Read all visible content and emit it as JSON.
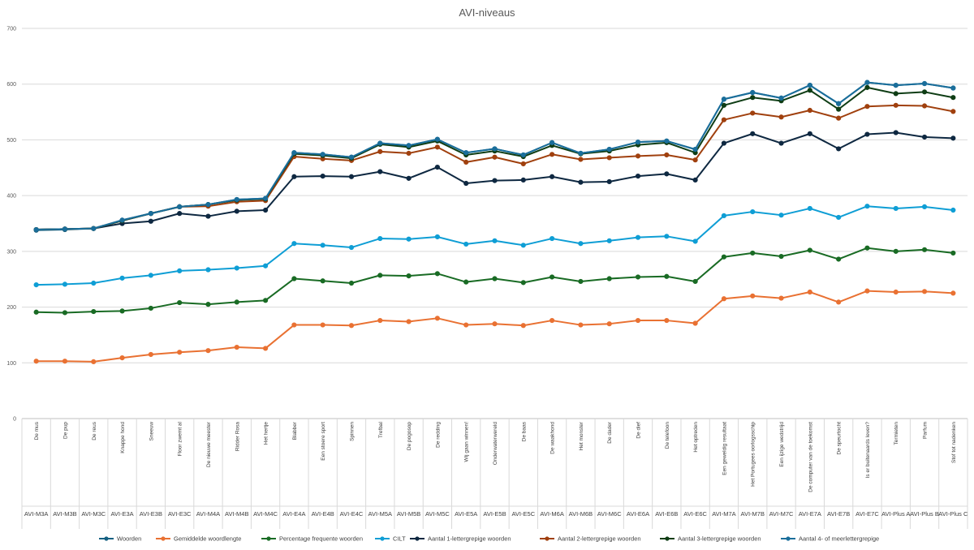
{
  "chart_data": {
    "type": "line",
    "title": "AVI-niveaus",
    "ylim": [
      0,
      700
    ],
    "yticks": [
      0,
      100,
      200,
      300,
      400,
      500,
      600,
      700
    ],
    "grid": "horizontal",
    "legend": "bottom",
    "categories": [
      {
        "name": "De mus",
        "group": "AVI-M3A"
      },
      {
        "name": "De pup",
        "group": "AVI-M3B"
      },
      {
        "name": "De reus",
        "group": "AVI-M3C"
      },
      {
        "name": "Knappe hond",
        "group": "AVI-E3A"
      },
      {
        "name": "Sneeuw",
        "group": "AVI-E3B"
      },
      {
        "name": "Floor zwemt al",
        "group": "AVI-E3C"
      },
      {
        "name": "De nieuwe meester",
        "group": "AVI-M4A"
      },
      {
        "name": "Ridder Rosa",
        "group": "AVI-M4B"
      },
      {
        "name": "Het hertje",
        "group": "AVI-M4C"
      },
      {
        "name": "Blabber",
        "group": "AVI-E4A"
      },
      {
        "name": "Een stoere sport",
        "group": "AVI-E4B"
      },
      {
        "name": "Spinnen",
        "group": "AVI-E4C"
      },
      {
        "name": "Trefbal",
        "group": "AVI-M5A"
      },
      {
        "name": "De pogosop",
        "group": "AVI-M5B"
      },
      {
        "name": "De redding",
        "group": "AVI-M5C"
      },
      {
        "name": "Wij gaan winnen!",
        "group": "AVI-E5A"
      },
      {
        "name": "Onderwaterwereld",
        "group": "AVI-E5B"
      },
      {
        "name": "De baas",
        "group": "AVI-E5C"
      },
      {
        "name": "De waakhond",
        "group": "AVI-M6A"
      },
      {
        "name": "Het monster",
        "group": "AVI-M6B"
      },
      {
        "name": "De dader",
        "group": "AVI-M6C"
      },
      {
        "name": "De dief",
        "group": "AVI-E6A"
      },
      {
        "name": "De telefoon",
        "group": "AVI-E6B"
      },
      {
        "name": "Het optreden",
        "group": "AVI-E6C"
      },
      {
        "name": "Een geweldig resultaat",
        "group": "AVI-M7A"
      },
      {
        "name": "Het Portugees oorlogsschip",
        "group": "AVI-M7B"
      },
      {
        "name": "Een ijzige wedstrijd",
        "group": "AVI-M7C"
      },
      {
        "name": "De computer van de toekomst",
        "group": "AVI-E7A"
      },
      {
        "name": "De speurtocht",
        "group": "AVI-E7B"
      },
      {
        "name": "Is er buitenaards leven?",
        "group": "AVI-E7C"
      },
      {
        "name": "Termieten",
        "group": "AVI-Plus A"
      },
      {
        "name": "Parfum",
        "group": "AVI-Plus B"
      },
      {
        "name": "Stof tot nadenken",
        "group": "AVI-Plus C"
      }
    ],
    "series": [
      {
        "name": "Woorden",
        "color": "#156082",
        "values": [
          338,
          339,
          341,
          356,
          368,
          380,
          384,
          393,
          395,
          477,
          474,
          469,
          494,
          490,
          501,
          477,
          484,
          473,
          495,
          476,
          483,
          496,
          498,
          483,
          573,
          585,
          575,
          598,
          565,
          603,
          598,
          601,
          593
        ]
      },
      {
        "name": "Gemiddelde woordlengte",
        "color": "#e97132",
        "values": [
          103,
          103,
          102,
          109,
          115,
          119,
          122,
          128,
          126,
          168,
          168,
          167,
          176,
          174,
          180,
          168,
          170,
          167,
          176,
          168,
          170,
          176,
          176,
          171,
          215,
          220,
          216,
          227,
          209,
          229,
          227,
          228,
          225
        ]
      },
      {
        "name": "Percentage frequente woorden",
        "color": "#196b24",
        "values": [
          191,
          190,
          192,
          193,
          198,
          208,
          205,
          209,
          212,
          251,
          247,
          243,
          257,
          256,
          260,
          245,
          251,
          244,
          254,
          246,
          251,
          254,
          255,
          246,
          290,
          297,
          291,
          302,
          286,
          306,
          300,
          303,
          297
        ]
      },
      {
        "name": "CILT",
        "color": "#0f9ed5",
        "values": [
          240,
          241,
          243,
          252,
          257,
          265,
          267,
          270,
          274,
          314,
          311,
          307,
          323,
          322,
          326,
          313,
          319,
          311,
          323,
          314,
          319,
          325,
          327,
          318,
          364,
          371,
          365,
          377,
          361,
          381,
          377,
          380,
          374
        ]
      },
      {
        "name": "Aantal 1-lettergrepige woorden",
        "color": "#0e2841",
        "values": [
          339,
          340,
          341,
          350,
          354,
          368,
          363,
          372,
          374,
          434,
          435,
          434,
          443,
          431,
          451,
          422,
          427,
          428,
          434,
          424,
          425,
          435,
          439,
          428,
          494,
          511,
          494,
          511,
          484,
          510,
          513,
          505,
          503
        ]
      },
      {
        "name": "Aantal 2-lettergrepige woorden",
        "color": "#a0400e",
        "values": [
          339,
          340,
          341,
          355,
          368,
          380,
          381,
          389,
          391,
          470,
          466,
          463,
          479,
          476,
          487,
          460,
          469,
          457,
          474,
          465,
          468,
          471,
          473,
          464,
          536,
          548,
          541,
          553,
          539,
          560,
          562,
          561,
          551
        ]
      },
      {
        "name": "Aantal 3-lettergrepige woorden",
        "color": "#0f3d15",
        "values": [
          339,
          340,
          341,
          355,
          368,
          380,
          384,
          392,
          394,
          475,
          472,
          467,
          492,
          487,
          498,
          473,
          480,
          470,
          490,
          475,
          480,
          491,
          495,
          477,
          562,
          576,
          570,
          589,
          555,
          594,
          583,
          586,
          576
        ]
      },
      {
        "name": "Aantal 4- of meerlettergrepige",
        "color": "#1a6e9b",
        "values": [
          339,
          340,
          341,
          356,
          368,
          380,
          384,
          393,
          395,
          477,
          474,
          469,
          494,
          490,
          501,
          477,
          484,
          473,
          495,
          476,
          483,
          496,
          498,
          483,
          573,
          585,
          575,
          598,
          565,
          603,
          598,
          601,
          593
        ]
      }
    ]
  }
}
